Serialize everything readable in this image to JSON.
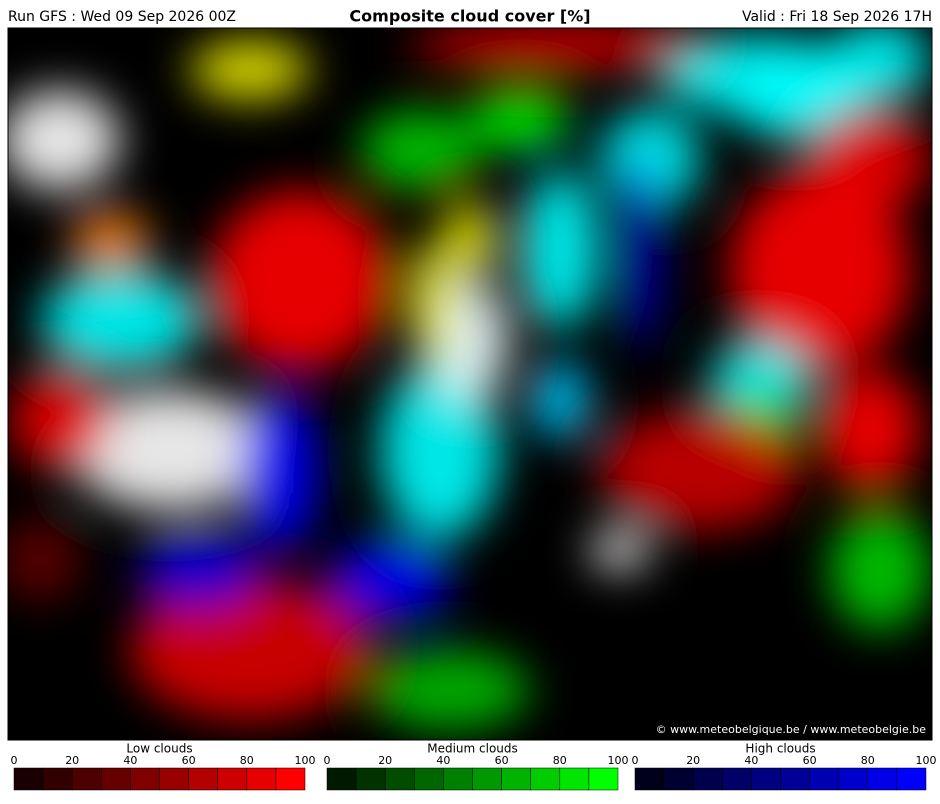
{
  "header": {
    "run": "Run GFS : Wed 09 Sep 2026 00Z",
    "title": "Composite cloud cover [%]",
    "valid": "Valid : Fri 18 Sep 2026 17H"
  },
  "map": {
    "credit": "© www.meteobelgique.be / www.meteobelgie.be"
  },
  "legends": [
    {
      "label": "Low clouds",
      "ticks": [
        0,
        20,
        40,
        60,
        80,
        100
      ],
      "colors": [
        "#1a0000",
        "#330000",
        "#4d0000",
        "#660000",
        "#800000",
        "#990000",
        "#b30000",
        "#cc0000",
        "#e60000",
        "#ff0000"
      ]
    },
    {
      "label": "Medium clouds",
      "ticks": [
        0,
        20,
        40,
        60,
        80,
        100
      ],
      "colors": [
        "#001a00",
        "#003300",
        "#004d00",
        "#006600",
        "#008000",
        "#009900",
        "#00b300",
        "#00cc00",
        "#00e600",
        "#00ff00"
      ]
    },
    {
      "label": "High clouds",
      "ticks": [
        0,
        20,
        40,
        60,
        80,
        100
      ],
      "colors": [
        "#00001a",
        "#000033",
        "#00004d",
        "#000066",
        "#000080",
        "#000099",
        "#0000b3",
        "#0000cc",
        "#0000e6",
        "#0000ff"
      ]
    }
  ]
}
